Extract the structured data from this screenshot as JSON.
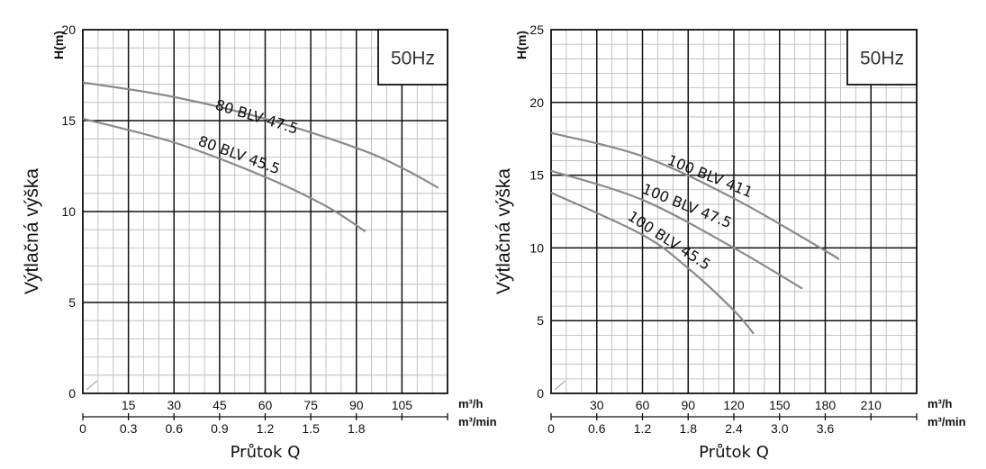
{
  "chart_data": [
    {
      "type": "line",
      "frequency_label": "50Hz",
      "ylabel": "Výtlačná výška",
      "y_unit_label": "H(m)",
      "xlabel": "Průtok Q",
      "x_unit_top": "m³/h",
      "x_unit_bottom": "m³/min",
      "ylim": [
        0,
        20
      ],
      "yticks": [
        "0",
        "5",
        "10",
        "15",
        "20"
      ],
      "xlim_m3h": [
        0,
        120
      ],
      "xticks_m3h": [
        "15",
        "30",
        "45",
        "60",
        "75",
        "90",
        "105"
      ],
      "xticks_m3min": [
        "0",
        "0.3",
        "0.6",
        "0.9",
        "1.2",
        "1.5",
        "1.8"
      ],
      "grid": true,
      "series": [
        {
          "name": "80 BLV 47.5",
          "x": [
            0,
            30,
            60,
            90,
            105,
            117
          ],
          "y": [
            17.1,
            16.3,
            15.1,
            13.5,
            12.4,
            11.3
          ]
        },
        {
          "name": "80 BLV 45.5",
          "x": [
            0,
            30,
            60,
            80,
            93
          ],
          "y": [
            15.1,
            13.8,
            11.9,
            10.3,
            8.9
          ]
        }
      ]
    },
    {
      "type": "line",
      "frequency_label": "50Hz",
      "ylabel": "Výtlačná výška",
      "y_unit_label": "H(m)",
      "xlabel": "Průtok Q",
      "x_unit_top": "m³/h",
      "x_unit_bottom": "m³/min",
      "ylim": [
        0,
        25
      ],
      "yticks": [
        "0",
        "5",
        "10",
        "15",
        "20",
        "25"
      ],
      "xlim_m3h": [
        0,
        240
      ],
      "xticks_m3h": [
        "30",
        "60",
        "90",
        "120",
        "150",
        "180",
        "210"
      ],
      "xticks_m3min": [
        "0",
        "0.6",
        "1.2",
        "1.8",
        "2.4",
        "3.0",
        "3.6"
      ],
      "grid": true,
      "series": [
        {
          "name": "100 BLV 411",
          "x": [
            0,
            60,
            120,
            180,
            189
          ],
          "y": [
            17.9,
            16.3,
            13.4,
            9.8,
            9.2
          ]
        },
        {
          "name": "100 BLV 47.5",
          "x": [
            0,
            60,
            120,
            165
          ],
          "y": [
            15.3,
            13.3,
            10.0,
            7.2
          ]
        },
        {
          "name": "100 BLV 45.5",
          "x": [
            0,
            60,
            90,
            120,
            133
          ],
          "y": [
            13.8,
            10.9,
            8.6,
            5.7,
            4.1
          ]
        }
      ]
    }
  ]
}
